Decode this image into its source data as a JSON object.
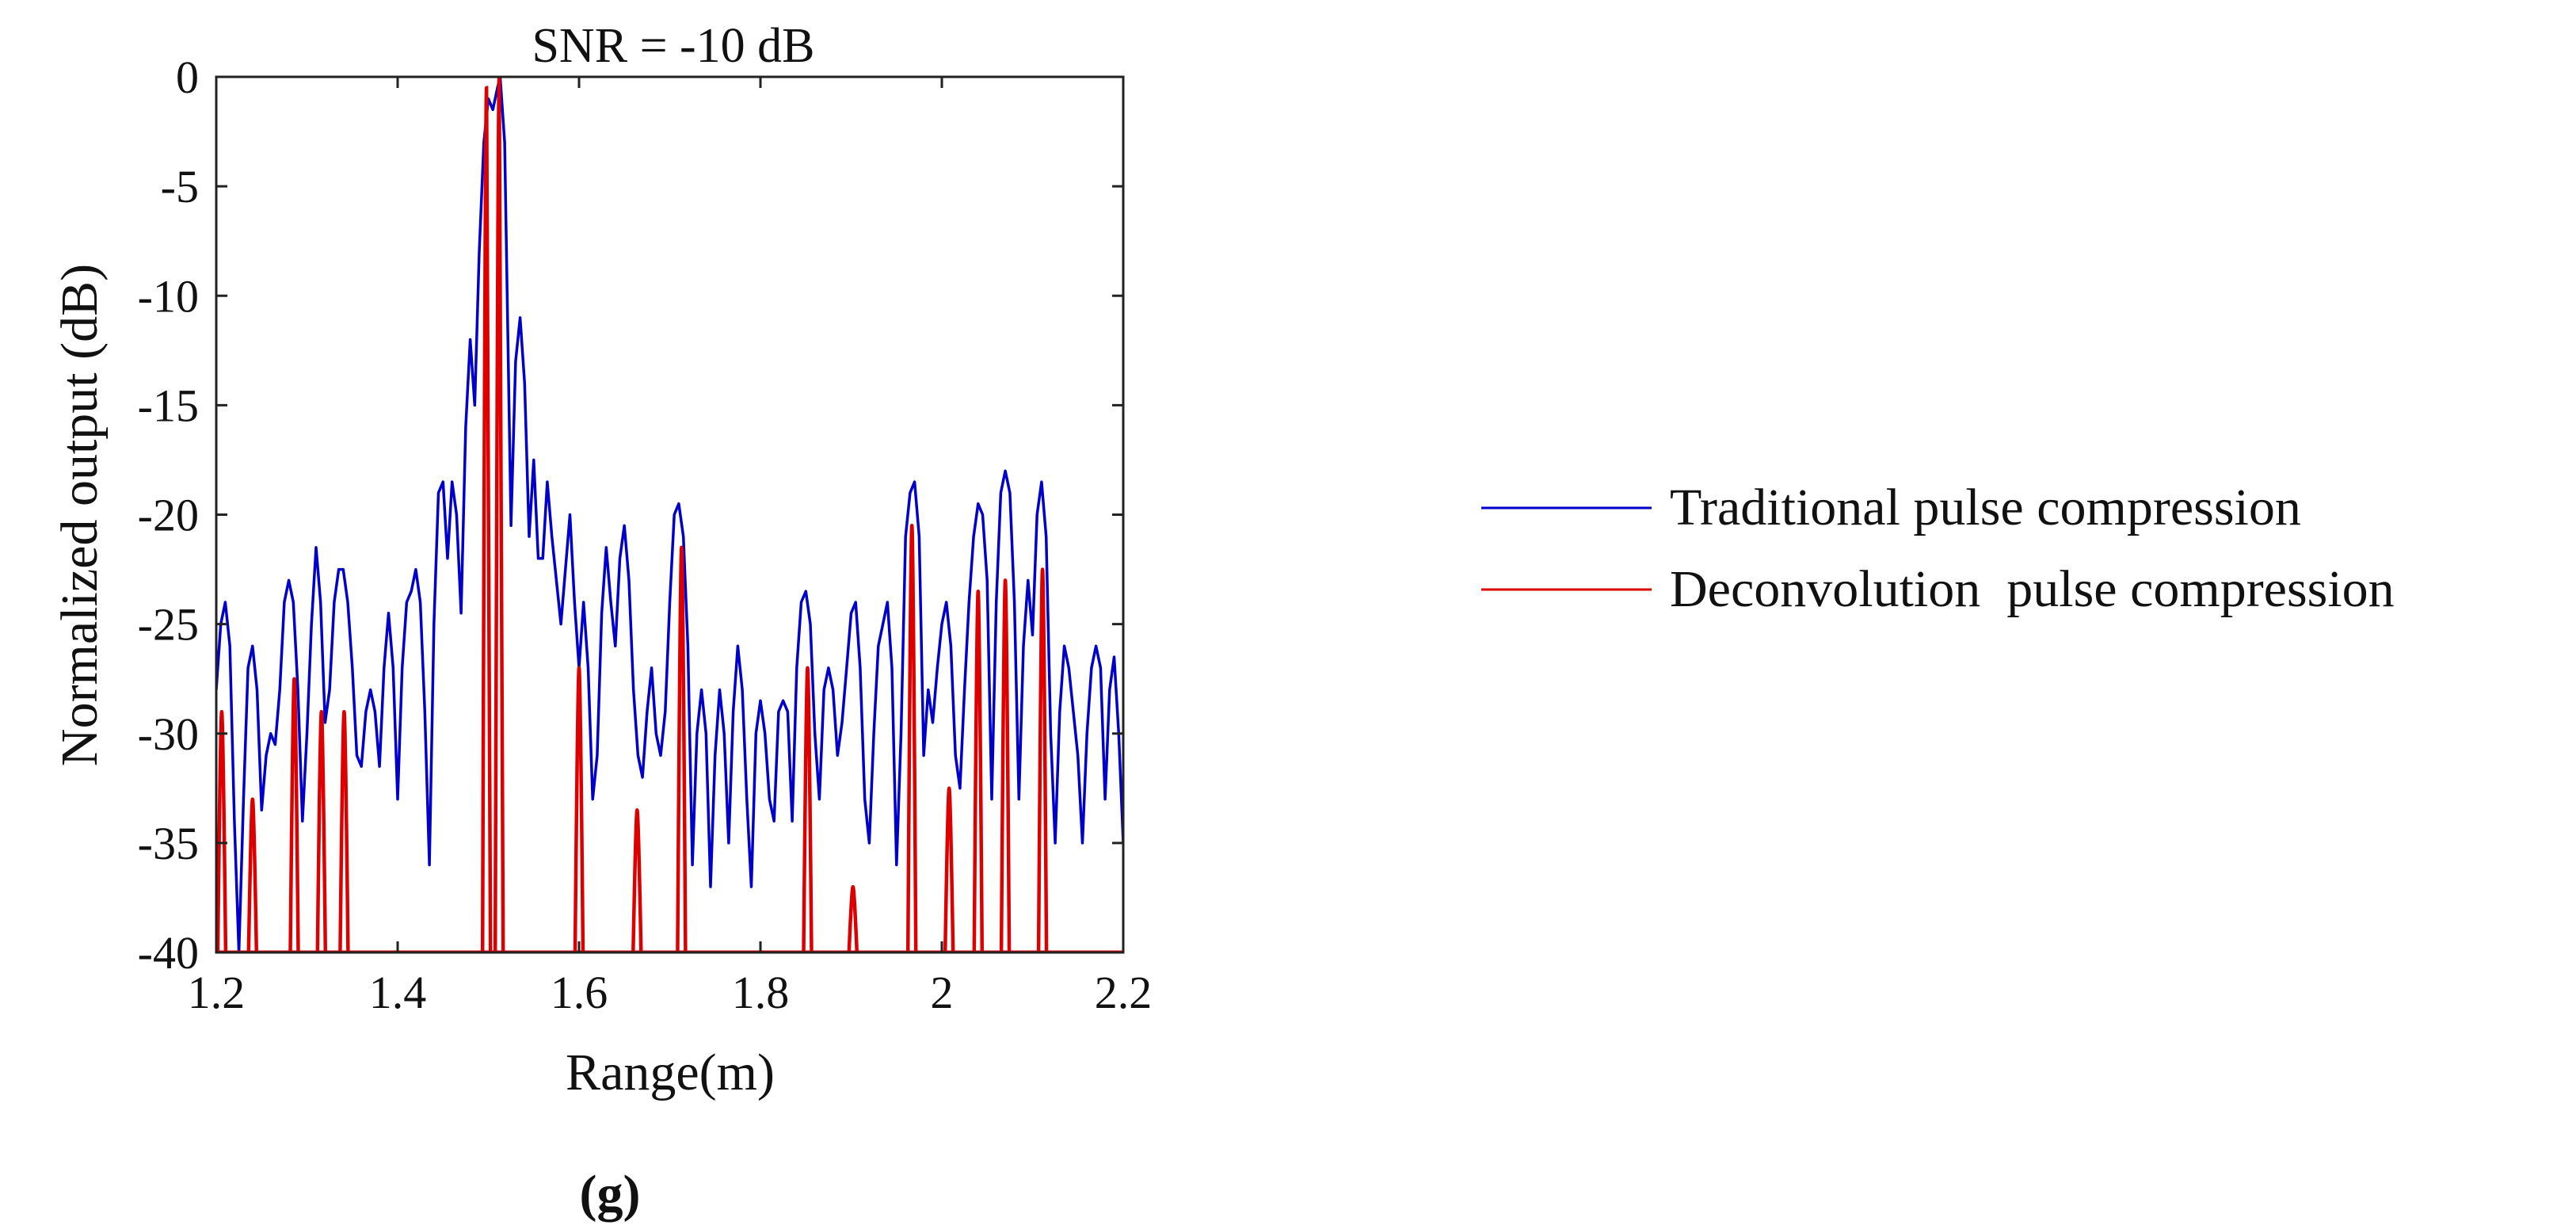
{
  "chart_data": {
    "type": "line",
    "title": "SNR = -10 dB",
    "xlabel": "Range(m)",
    "ylabel": "Normalized output (dB)",
    "xlim": [
      1.2,
      2.2
    ],
    "ylim": [
      -40,
      0
    ],
    "x_ticks": [
      1.2,
      1.4,
      1.6,
      1.8,
      2,
      2.2
    ],
    "x_tick_labels": [
      "1.2",
      "1.4",
      "1.6",
      "1.8",
      "2",
      "2.2"
    ],
    "y_ticks": [
      0,
      -5,
      -10,
      -15,
      -20,
      -25,
      -30,
      -35,
      -40
    ],
    "y_tick_labels": [
      "0",
      "-5",
      "-10",
      "-15",
      "-20",
      "-25",
      "-30",
      "-35",
      "-40"
    ],
    "grid": false,
    "legend_position": "outside-right",
    "panel_label": "(g)",
    "series": [
      {
        "name": "Traditional pulse compression",
        "color": "#0000cc",
        "points": [
          [
            1.2,
            -28
          ],
          [
            1.205,
            -25
          ],
          [
            1.21,
            -24
          ],
          [
            1.215,
            -26
          ],
          [
            1.22,
            -34
          ],
          [
            1.225,
            -40
          ],
          [
            1.23,
            -33
          ],
          [
            1.235,
            -27
          ],
          [
            1.24,
            -26
          ],
          [
            1.245,
            -28
          ],
          [
            1.25,
            -33.5
          ],
          [
            1.255,
            -31
          ],
          [
            1.26,
            -30
          ],
          [
            1.265,
            -30.5
          ],
          [
            1.27,
            -28
          ],
          [
            1.275,
            -24
          ],
          [
            1.28,
            -23
          ],
          [
            1.285,
            -24
          ],
          [
            1.29,
            -28
          ],
          [
            1.295,
            -34
          ],
          [
            1.3,
            -30
          ],
          [
            1.305,
            -25
          ],
          [
            1.31,
            -21.5
          ],
          [
            1.315,
            -24
          ],
          [
            1.32,
            -29.5
          ],
          [
            1.325,
            -28
          ],
          [
            1.33,
            -24
          ],
          [
            1.335,
            -22.5
          ],
          [
            1.34,
            -22.5
          ],
          [
            1.345,
            -24
          ],
          [
            1.35,
            -27
          ],
          [
            1.355,
            -31
          ],
          [
            1.36,
            -31.5
          ],
          [
            1.365,
            -29
          ],
          [
            1.37,
            -28
          ],
          [
            1.375,
            -29
          ],
          [
            1.38,
            -31.5
          ],
          [
            1.385,
            -27
          ],
          [
            1.39,
            -24.5
          ],
          [
            1.395,
            -27
          ],
          [
            1.4,
            -33
          ],
          [
            1.405,
            -27
          ],
          [
            1.41,
            -24
          ],
          [
            1.415,
            -23.5
          ],
          [
            1.42,
            -22.5
          ],
          [
            1.425,
            -24
          ],
          [
            1.43,
            -29
          ],
          [
            1.435,
            -36
          ],
          [
            1.44,
            -25
          ],
          [
            1.445,
            -19
          ],
          [
            1.45,
            -18.5
          ],
          [
            1.455,
            -22
          ],
          [
            1.46,
            -18.5
          ],
          [
            1.465,
            -20
          ],
          [
            1.47,
            -24.5
          ],
          [
            1.475,
            -16
          ],
          [
            1.48,
            -12
          ],
          [
            1.485,
            -15
          ],
          [
            1.49,
            -8
          ],
          [
            1.495,
            -3
          ],
          [
            1.5,
            -1
          ],
          [
            1.505,
            -1.5
          ],
          [
            1.51,
            -0.5
          ],
          [
            1.513,
            0
          ],
          [
            1.518,
            -3
          ],
          [
            1.525,
            -20.5
          ],
          [
            1.53,
            -13
          ],
          [
            1.535,
            -11
          ],
          [
            1.54,
            -14
          ],
          [
            1.545,
            -21
          ],
          [
            1.55,
            -17.5
          ],
          [
            1.555,
            -22
          ],
          [
            1.56,
            -22
          ],
          [
            1.565,
            -18.5
          ],
          [
            1.57,
            -21
          ],
          [
            1.575,
            -23
          ],
          [
            1.58,
            -25
          ],
          [
            1.585,
            -22.5
          ],
          [
            1.59,
            -20
          ],
          [
            1.595,
            -24
          ],
          [
            1.6,
            -27
          ],
          [
            1.605,
            -24
          ],
          [
            1.61,
            -27
          ],
          [
            1.615,
            -33
          ],
          [
            1.62,
            -31
          ],
          [
            1.625,
            -24.5
          ],
          [
            1.63,
            -21.5
          ],
          [
            1.635,
            -24
          ],
          [
            1.64,
            -26
          ],
          [
            1.645,
            -22
          ],
          [
            1.65,
            -20.5
          ],
          [
            1.655,
            -23
          ],
          [
            1.66,
            -28
          ],
          [
            1.665,
            -31
          ],
          [
            1.67,
            -32
          ],
          [
            1.675,
            -29
          ],
          [
            1.68,
            -27
          ],
          [
            1.685,
            -30
          ],
          [
            1.69,
            -31
          ],
          [
            1.695,
            -29
          ],
          [
            1.7,
            -24
          ],
          [
            1.705,
            -20
          ],
          [
            1.71,
            -19.5
          ],
          [
            1.715,
            -21
          ],
          [
            1.72,
            -26
          ],
          [
            1.725,
            -36
          ],
          [
            1.73,
            -30
          ],
          [
            1.735,
            -28
          ],
          [
            1.74,
            -30
          ],
          [
            1.745,
            -37
          ],
          [
            1.75,
            -31
          ],
          [
            1.755,
            -28
          ],
          [
            1.76,
            -30
          ],
          [
            1.765,
            -35
          ],
          [
            1.77,
            -29
          ],
          [
            1.775,
            -26
          ],
          [
            1.78,
            -28
          ],
          [
            1.785,
            -33
          ],
          [
            1.79,
            -37
          ],
          [
            1.795,
            -30
          ],
          [
            1.8,
            -28.5
          ],
          [
            1.805,
            -30
          ],
          [
            1.81,
            -33
          ],
          [
            1.815,
            -34
          ],
          [
            1.82,
            -29
          ],
          [
            1.825,
            -28.5
          ],
          [
            1.83,
            -29
          ],
          [
            1.835,
            -34
          ],
          [
            1.84,
            -27
          ],
          [
            1.845,
            -24
          ],
          [
            1.85,
            -23.5
          ],
          [
            1.855,
            -25
          ],
          [
            1.86,
            -30
          ],
          [
            1.865,
            -33
          ],
          [
            1.87,
            -28
          ],
          [
            1.875,
            -27
          ],
          [
            1.88,
            -28
          ],
          [
            1.885,
            -31
          ],
          [
            1.89,
            -29.5
          ],
          [
            1.895,
            -27
          ],
          [
            1.9,
            -24.5
          ],
          [
            1.905,
            -24
          ],
          [
            1.91,
            -27
          ],
          [
            1.915,
            -33
          ],
          [
            1.92,
            -35
          ],
          [
            1.925,
            -30
          ],
          [
            1.93,
            -26
          ],
          [
            1.935,
            -25
          ],
          [
            1.94,
            -24
          ],
          [
            1.945,
            -27
          ],
          [
            1.95,
            -36
          ],
          [
            1.955,
            -30
          ],
          [
            1.96,
            -21
          ],
          [
            1.965,
            -19
          ],
          [
            1.97,
            -18.5
          ],
          [
            1.975,
            -21
          ],
          [
            1.98,
            -31
          ],
          [
            1.985,
            -28
          ],
          [
            1.99,
            -29.5
          ],
          [
            1.995,
            -27
          ],
          [
            2.0,
            -25
          ],
          [
            2.005,
            -24
          ],
          [
            2.01,
            -26
          ],
          [
            2.015,
            -31
          ],
          [
            2.02,
            -32.5
          ],
          [
            2.025,
            -28
          ],
          [
            2.03,
            -24
          ],
          [
            2.035,
            -21
          ],
          [
            2.04,
            -19.5
          ],
          [
            2.045,
            -20
          ],
          [
            2.05,
            -23
          ],
          [
            2.055,
            -33
          ],
          [
            2.06,
            -24
          ],
          [
            2.065,
            -19
          ],
          [
            2.07,
            -18
          ],
          [
            2.075,
            -19
          ],
          [
            2.08,
            -24
          ],
          [
            2.085,
            -33
          ],
          [
            2.09,
            -26
          ],
          [
            2.095,
            -23
          ],
          [
            2.1,
            -25.5
          ],
          [
            2.105,
            -20
          ],
          [
            2.11,
            -18.5
          ],
          [
            2.115,
            -21
          ],
          [
            2.12,
            -30
          ],
          [
            2.125,
            -35
          ],
          [
            2.13,
            -29
          ],
          [
            2.135,
            -26
          ],
          [
            2.14,
            -27
          ],
          [
            2.145,
            -29
          ],
          [
            2.15,
            -31
          ],
          [
            2.155,
            -35
          ],
          [
            2.16,
            -30
          ],
          [
            2.165,
            -27
          ],
          [
            2.17,
            -26
          ],
          [
            2.175,
            -27
          ],
          [
            2.18,
            -33
          ],
          [
            2.185,
            -28
          ],
          [
            2.19,
            -26.5
          ],
          [
            2.195,
            -30
          ],
          [
            2.2,
            -35
          ]
        ]
      },
      {
        "name": "Deconvolution  pulse compression",
        "color": "#dd0000",
        "baseline": -40,
        "peaks": [
          [
            1.206,
            -29
          ],
          [
            1.24,
            -33
          ],
          [
            1.286,
            -27.5
          ],
          [
            1.316,
            -29
          ],
          [
            1.341,
            -29
          ],
          [
            1.498,
            -0.5
          ],
          [
            1.512,
            0
          ],
          [
            1.6,
            -27
          ],
          [
            1.664,
            -33.5
          ],
          [
            1.713,
            -21.5
          ],
          [
            1.852,
            -27
          ],
          [
            1.902,
            -37
          ],
          [
            1.967,
            -20.5
          ],
          [
            2.008,
            -32.5
          ],
          [
            2.04,
            -23.5
          ],
          [
            2.07,
            -23
          ],
          [
            2.111,
            -22.5
          ]
        ]
      }
    ]
  }
}
